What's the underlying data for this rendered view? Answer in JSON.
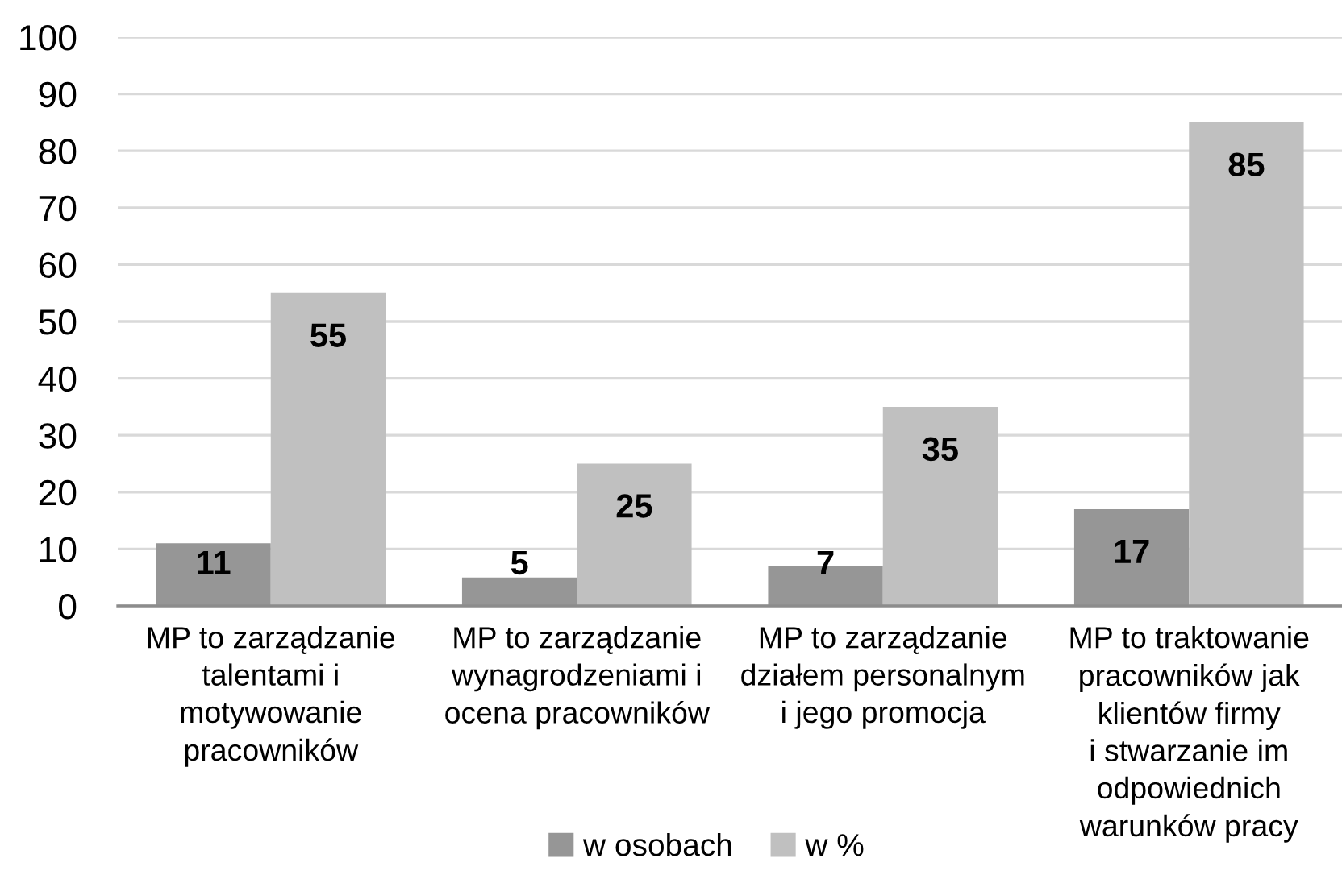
{
  "chart_data": {
    "type": "bar",
    "categories": [
      "MP to zarządzanie\ntalentami i\nmotywowanie\npracowników",
      "MP to zarządzanie\nwynagrodzeniami i\nocena pracowników",
      "MP to zarządzanie\ndziałem personalnym\ni jego promocja",
      "MP to traktowanie\npracowników jak\nklientów firmy\ni stwarzanie im\nodpowiednich\nwarunków pracy"
    ],
    "series": [
      {
        "name": "w osobach",
        "color": "#969696",
        "values": [
          11,
          5,
          7,
          17
        ]
      },
      {
        "name": "w %",
        "color": "#c0c0c0",
        "values": [
          55,
          25,
          35,
          85
        ]
      }
    ],
    "ylim": [
      0,
      100
    ],
    "yticks": [
      0,
      10,
      20,
      30,
      40,
      50,
      60,
      70,
      80,
      90,
      100
    ],
    "grid": "y",
    "legend": "bottom",
    "data_labels": true
  }
}
